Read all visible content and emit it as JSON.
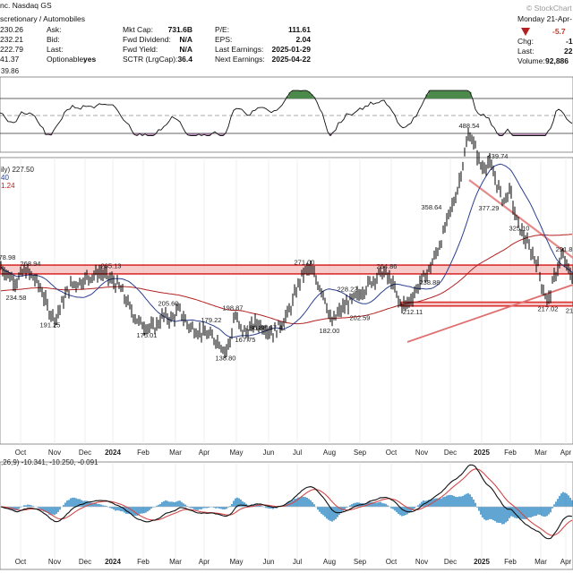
{
  "header": {
    "title_partial": "nc. Nasdaq GS",
    "sector_partial": "scretionary / Automobiles",
    "date_partial": "Monday 21-Apr-",
    "watermark": "© StockChart",
    "change_partial": "-5.7",
    "col1": [
      "230.26",
      "232.21",
      "222.79",
      "41.37"
    ],
    "col2": [
      {
        "label": "Ask:",
        "value": ""
      },
      {
        "label": "Bid:",
        "value": ""
      },
      {
        "label": "Last:",
        "value": ""
      },
      {
        "label": "Optionable:",
        "value": "yes"
      }
    ],
    "col3": [
      {
        "label": "Mkt Cap:",
        "value": "731.6B"
      },
      {
        "label": "Fwd Dividend:",
        "value": "N/A"
      },
      {
        "label": "Fwd Yield:",
        "value": "N/A"
      },
      {
        "label": "SCTR (LrgCap):",
        "value": "36.4"
      }
    ],
    "col4": [
      {
        "label": "P/E:",
        "value": "111.61"
      },
      {
        "label": "EPS:",
        "value": "2.04"
      },
      {
        "label": "Last Earnings:",
        "value": "2025-01-29"
      },
      {
        "label": "Next Earnings:",
        "value": "2025-04-22"
      }
    ],
    "col5": [
      {
        "label": "Chg:",
        "value": "-1"
      },
      {
        "label": "Last:",
        "value": "22"
      },
      {
        "label": "Volume:",
        "value": "92,886"
      }
    ]
  },
  "rsi_panel": {
    "label_partial": "39.86"
  },
  "price_panel": {
    "label_partial": "ily) 227.50",
    "label_line2": "40",
    "label_line3": "1.24"
  },
  "macd_panel": {
    "label": ",26,9) -10.341, -10.250, -0.091"
  },
  "colors": {
    "price": "#000000",
    "sma_short": "#2b3f8f",
    "sma_long": "#b22222",
    "zone": "#e03030",
    "trend": "#e58a8a",
    "rsi_fill": "#4c8a4c",
    "macd_signal": "#d24a4a",
    "hist": "#3a8fc8"
  },
  "x_axis_labels": [
    "Oct",
    "Nov",
    "Dec",
    "2024",
    "Feb",
    "Mar",
    "Apr",
    "May",
    "Jun",
    "Jul",
    "Aug",
    "Sep",
    "Oct",
    "Nov",
    "Dec",
    "2025",
    "Feb",
    "Mar",
    "Apr"
  ],
  "chart_data": {
    "type": "line",
    "price_annotations": [
      {
        "label": "78.98",
        "value": 278.98
      },
      {
        "label": "268.94",
        "value": 268.94
      },
      {
        "label": "265.13",
        "value": 265.13
      },
      {
        "label": "234.58",
        "value": 234.58
      },
      {
        "label": "191.25",
        "value": 191.25
      },
      {
        "label": "205.60",
        "value": 205.6
      },
      {
        "label": "175.01",
        "value": 175.01
      },
      {
        "label": "179.22",
        "value": 179.22
      },
      {
        "label": "198.87",
        "value": 198.87
      },
      {
        "label": "186.88",
        "value": 186.88
      },
      {
        "label": "167.75",
        "value": 167.75
      },
      {
        "label": "167.41",
        "value": 167.41
      },
      {
        "label": "138.80",
        "value": 138.8
      },
      {
        "label": "271.00",
        "value": 271.0
      },
      {
        "label": "228.22",
        "value": 228.22
      },
      {
        "label": "182.00",
        "value": 182.0
      },
      {
        "label": "202.59",
        "value": 202.59
      },
      {
        "label": "264.86",
        "value": 264.86
      },
      {
        "label": "212.11",
        "value": 212.11
      },
      {
        "label": "238.88",
        "value": 238.88
      },
      {
        "label": "358.64",
        "value": 358.64
      },
      {
        "label": "488.54",
        "value": 488.54
      },
      {
        "label": "439.74",
        "value": 439.74
      },
      {
        "label": "377.29",
        "value": 377.29
      },
      {
        "label": "325.10",
        "value": 325.1
      },
      {
        "label": "291.8",
        "value": 291.8
      },
      {
        "label": "217.02",
        "value": 217.02
      },
      {
        "label": "21",
        "value": 214.0
      }
    ],
    "resistance_zone": [
      262,
      276
    ],
    "support_zone": [
      211,
      217
    ]
  }
}
